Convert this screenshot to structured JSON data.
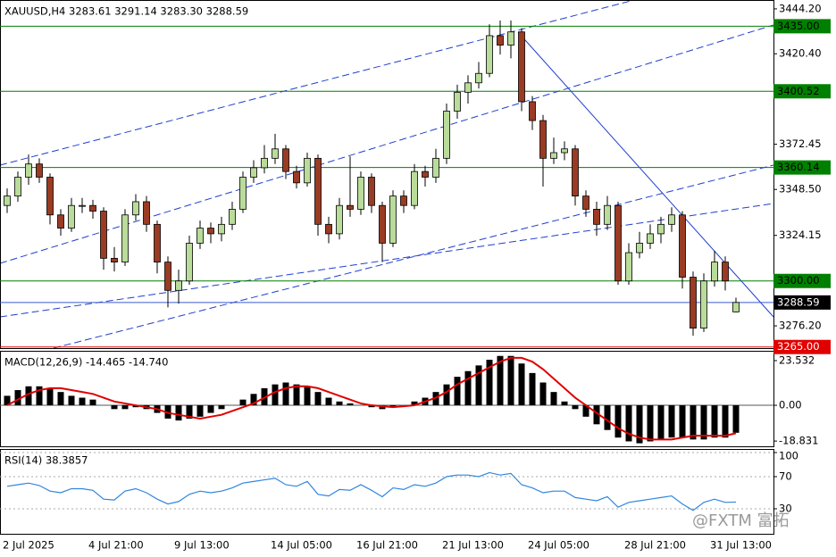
{
  "chart_data": [
    {
      "type": "candlestick",
      "title": "XAUUSD,H4  3283.61 3291.14 3283.30 3288.59",
      "categories": [
        "2 Jul 2025",
        null,
        null,
        null,
        null,
        null,
        null,
        null,
        "4 Jul 21:00",
        null,
        null,
        null,
        null,
        null,
        null,
        null,
        "9 Jul 13:00",
        null,
        null,
        null,
        null,
        null,
        null,
        null,
        null,
        "14 Jul 05:00",
        null,
        null,
        null,
        null,
        null,
        null,
        null,
        "16 Jul 21:00",
        null,
        null,
        null,
        null,
        null,
        null,
        null,
        "21 Jul 13:00",
        null,
        null,
        null,
        null,
        null,
        null,
        null,
        "24 Jul 05:00",
        null,
        null,
        null,
        null,
        null,
        null,
        null,
        null,
        "28 Jul 21:00",
        null,
        null,
        null,
        null,
        null,
        null,
        null,
        "31 Jul 13:00",
        null,
        null
      ],
      "open": [
        3340,
        3345,
        3355,
        3362,
        3355,
        3335,
        3328,
        3340,
        3340,
        3337,
        3312,
        3310,
        3335,
        3342,
        3330,
        3310,
        3295,
        3300,
        3320,
        3328,
        3325,
        3330,
        3338,
        3355,
        3360,
        3365,
        3370,
        3358,
        3352,
        3365,
        3330,
        3325,
        3340,
        3338,
        3355,
        3340,
        3320,
        3345,
        3340,
        3358,
        3355,
        3365,
        3390,
        3400,
        3405,
        3410,
        3430,
        3425,
        3432,
        3395,
        3385,
        3365,
        3368,
        3370,
        3345,
        3338,
        3330,
        3340,
        3300,
        3315,
        3320,
        3325,
        3330,
        3335,
        3302,
        3275,
        3300,
        3310,
        3283.61
      ],
      "high": [
        3349,
        3358,
        3367,
        3365,
        3357,
        3338,
        3344,
        3344,
        3343,
        3339,
        3318,
        3338,
        3346,
        3345,
        3332,
        3313,
        3306,
        3324,
        3332,
        3331,
        3334,
        3342,
        3358,
        3364,
        3372,
        3378,
        3372,
        3361,
        3368,
        3367,
        3334,
        3344,
        3366,
        3358,
        3357,
        3342,
        3348,
        3348,
        3362,
        3361,
        3370,
        3394,
        3404,
        3409,
        3416,
        3436,
        3438,
        3438,
        3434,
        3398,
        3388,
        3376,
        3374,
        3372,
        3348,
        3342,
        3345,
        3342,
        3320,
        3326,
        3330,
        3334,
        3339,
        3337,
        3305,
        3304,
        3316,
        3313,
        3291.14
      ],
      "low": [
        3336,
        3342,
        3351,
        3352,
        3330,
        3324,
        3326,
        3336,
        3333,
        3306,
        3305,
        3308,
        3332,
        3326,
        3304,
        3286,
        3288,
        3298,
        3317,
        3320,
        3321,
        3327,
        3336,
        3352,
        3357,
        3362,
        3354,
        3349,
        3350,
        3324,
        3320,
        3322,
        3334,
        3335,
        3336,
        3310,
        3318,
        3336,
        3338,
        3350,
        3352,
        3362,
        3386,
        3394,
        3402,
        3408,
        3420,
        3418,
        3390,
        3380,
        3350,
        3362,
        3364,
        3340,
        3334,
        3324,
        3327,
        3298,
        3298,
        3312,
        3317,
        3320,
        3326,
        3296,
        3271,
        3273,
        3297,
        3295,
        3283.3
      ],
      "close": [
        3345,
        3355,
        3362,
        3355,
        3335,
        3328,
        3340,
        3340,
        3337,
        3312,
        3310,
        3335,
        3342,
        3330,
        3310,
        3295,
        3300,
        3320,
        3328,
        3325,
        3330,
        3338,
        3355,
        3360,
        3365,
        3370,
        3358,
        3352,
        3365,
        3330,
        3325,
        3340,
        3338,
        3355,
        3340,
        3320,
        3345,
        3340,
        3358,
        3355,
        3365,
        3390,
        3400,
        3405,
        3410,
        3430,
        3425,
        3432,
        3395,
        3385,
        3365,
        3368,
        3370,
        3345,
        3338,
        3330,
        3340,
        3300,
        3315,
        3320,
        3325,
        3330,
        3335,
        3302,
        3275,
        3300,
        3310,
        3300,
        3288.59
      ],
      "up_color": "#b9dc9a",
      "down_color": "#9a3b24",
      "wick_color": "#000000",
      "ylim": [
        3264.4,
        3448.9
      ],
      "yticks": [
        {
          "value": 3444.2,
          "label": "3444.20"
        },
        {
          "value": 3420.4,
          "label": "3420.40"
        },
        3372.45,
        {
          "value": 3348.5,
          "label": "3348.50"
        },
        3324.15,
        {
          "value": 3276.2,
          "label": "3276.20"
        }
      ],
      "levels": [
        {
          "value": 3435,
          "label": "3435.00",
          "color": "#008000",
          "text_color": "#000000"
        },
        {
          "value": 3400.52,
          "label": "3400.52",
          "color": "#008000",
          "text_color": "#000000"
        },
        {
          "value": 3360.14,
          "label": "3360.14",
          "color": "#008000",
          "text_color": "#000000"
        },
        {
          "value": 3300,
          "label": "3300.00",
          "color": "#008000",
          "text_color": "#000000"
        },
        {
          "value": 3288.59,
          "label": "3288.59",
          "color": "#000000",
          "line_color": "#3a5ad0",
          "text_color": "#ffffff"
        },
        {
          "value": 3265,
          "label": "3265.00",
          "color": "#e00000",
          "text_color": "#ffffff"
        }
      ]
    },
    {
      "type": "macd",
      "title": "MACD(12,26,9) -14.465 -14.740",
      "histogram": [
        5,
        8,
        10,
        10,
        9,
        7,
        5,
        4,
        3,
        0,
        -2,
        -2,
        -1,
        -2,
        -4,
        -7,
        -8,
        -7,
        -6,
        -4,
        -2,
        0,
        3,
        6,
        9,
        11,
        12,
        11,
        10,
        7,
        4,
        2,
        1,
        0,
        -1,
        -2,
        -1,
        0,
        2,
        4,
        7,
        11,
        15,
        18,
        21,
        24,
        26,
        26,
        22,
        17,
        12,
        7,
        2,
        -2,
        -6,
        -10,
        -13,
        -17,
        -19,
        -20,
        -19,
        -18,
        -17,
        -17,
        -18,
        -18,
        -17,
        -17,
        -14.465
      ],
      "signal": [
        0,
        3,
        6,
        8,
        9,
        9,
        8,
        7,
        6,
        4,
        2,
        1,
        0,
        -1,
        -2,
        -4,
        -5,
        -6,
        -7,
        -6,
        -5,
        -3,
        -1,
        1,
        4,
        7,
        9,
        10,
        10,
        9,
        7,
        5,
        3,
        1,
        0,
        -0.5,
        -1,
        -0.5,
        0,
        2,
        4,
        7,
        11,
        14,
        17,
        20,
        23,
        25,
        25,
        23,
        19,
        14,
        9,
        4,
        0,
        -4,
        -8,
        -12,
        -15,
        -17,
        -18,
        -18,
        -18,
        -17,
        -16,
        -16,
        -16,
        -16,
        -14.74
      ],
      "bar_color": "#000000",
      "signal_color": "#e00000",
      "ylim": [
        -21.6,
        28.7
      ],
      "yticks": [
        23.532,
        {
          "value": 0,
          "label": "0.00"
        },
        -18.831
      ]
    },
    {
      "type": "line",
      "title": "RSI(14) 38.3857",
      "values": [
        58,
        60,
        62,
        59,
        52,
        50,
        55,
        55,
        53,
        42,
        41,
        52,
        55,
        50,
        42,
        36,
        39,
        48,
        52,
        50,
        52,
        56,
        62,
        64,
        66,
        68,
        60,
        58,
        64,
        48,
        46,
        54,
        53,
        60,
        53,
        45,
        56,
        54,
        60,
        58,
        62,
        70,
        72,
        72,
        70,
        75,
        72,
        74,
        60,
        56,
        50,
        52,
        52,
        44,
        42,
        40,
        45,
        32,
        38,
        40,
        42,
        44,
        46,
        36,
        28,
        38,
        42,
        38,
        38.3857
      ],
      "color": "#2f86e0",
      "ylim": [
        -1.1,
        104.4
      ],
      "yticks": [
        100,
        70,
        30
      ],
      "grid": true
    }
  ],
  "watermark": "@FXTM 富拓"
}
